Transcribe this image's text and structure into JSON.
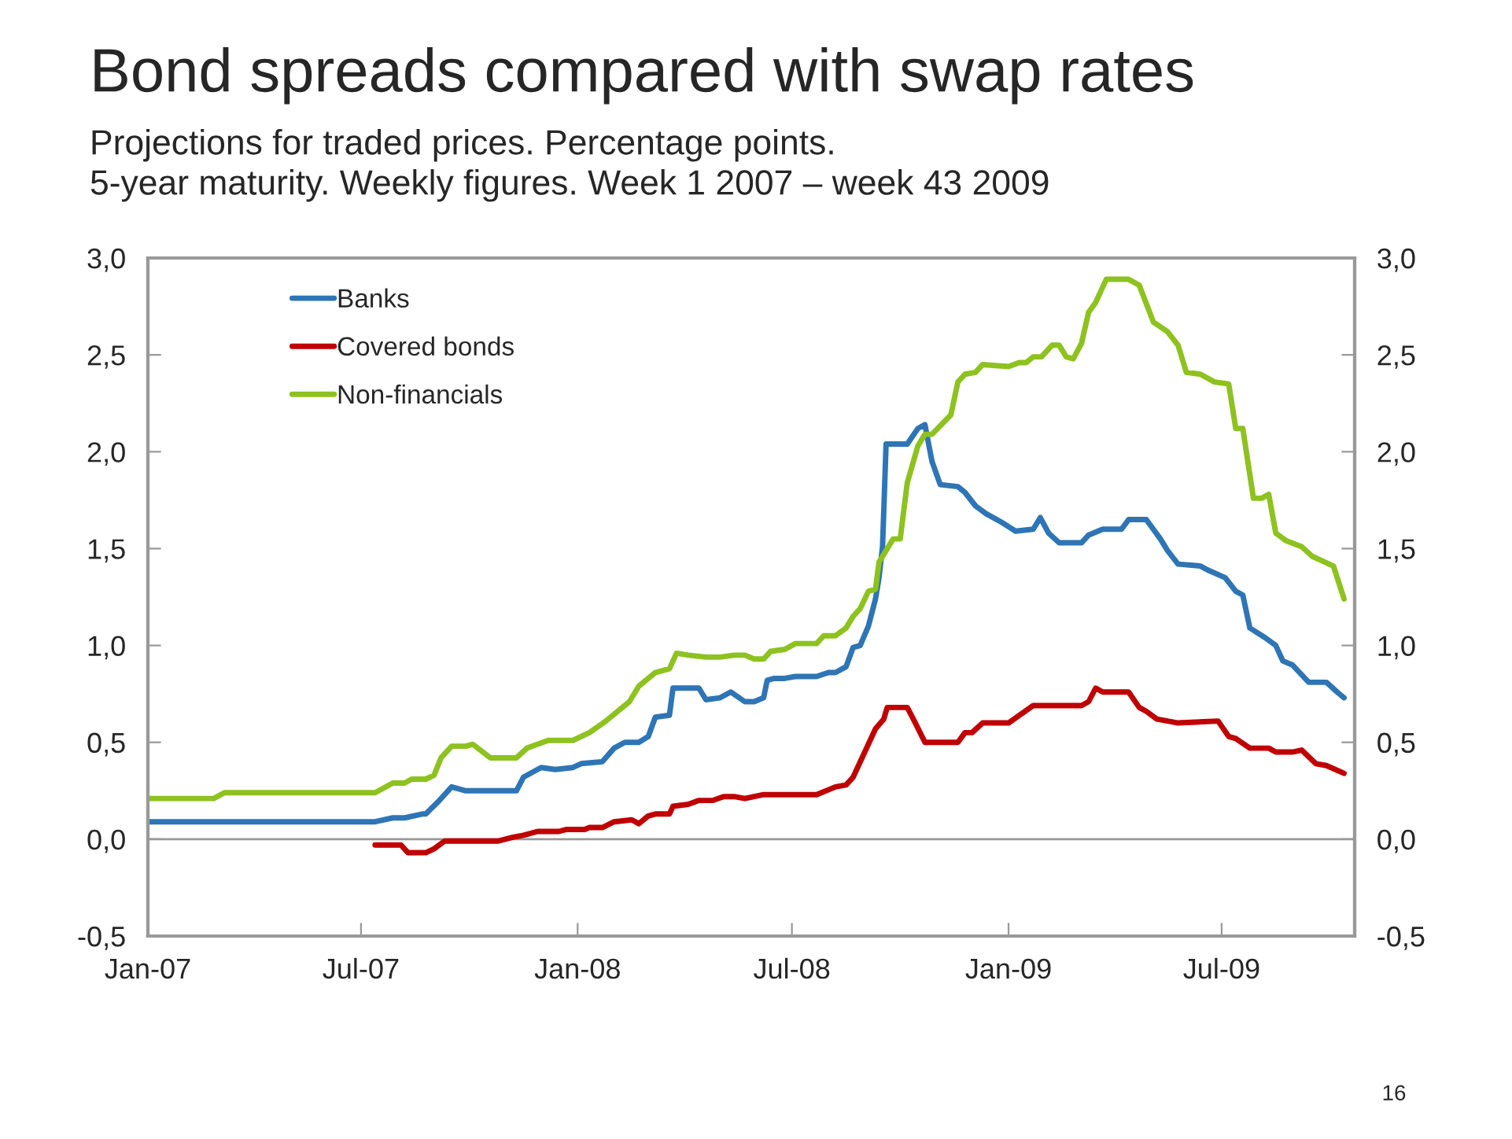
{
  "chart_data": {
    "type": "line",
    "title": "Bond spreads compared with swap rates",
    "subtitle": "Projections for traded prices. Percentage points.\n5-year maturity. Weekly figures. Week 1 2007 – week 43 2009",
    "xlim": [
      "2007-01-01",
      "2009-10-22"
    ],
    "xticks": [
      {
        "value": "2007-01-01",
        "label": "Jan-07"
      },
      {
        "value": "2007-07-01",
        "label": "Jul-07"
      },
      {
        "value": "2008-01-01",
        "label": "Jan-08"
      },
      {
        "value": "2008-07-01",
        "label": "Jul-08"
      },
      {
        "value": "2009-01-01",
        "label": "Jan-09"
      },
      {
        "value": "2009-07-01",
        "label": "Jul-09"
      }
    ],
    "ylim": [
      -0.5,
      3.0
    ],
    "yticks": [
      {
        "value": -0.5,
        "label": "-0,5"
      },
      {
        "value": 0,
        "label": "0,0"
      },
      {
        "value": 0.5,
        "label": "0,5"
      },
      {
        "value": 1.0,
        "label": "1,0"
      },
      {
        "value": 1.5,
        "label": "1,5"
      },
      {
        "value": 2.0,
        "label": "2,0"
      },
      {
        "value": 2.5,
        "label": "2,5"
      },
      {
        "value": 3.0,
        "label": "3,0"
      }
    ],
    "y2lim": [
      -0.5,
      3.0
    ],
    "y2ticks": [
      {
        "value": -0.5,
        "label": "-0,5"
      },
      {
        "value": 0,
        "label": "0,0"
      },
      {
        "value": 0.5,
        "label": "0,5"
      },
      {
        "value": 1.0,
        "label": "1,0"
      },
      {
        "value": 1.5,
        "label": "1,5"
      },
      {
        "value": 2.0,
        "label": "2,0"
      },
      {
        "value": 2.5,
        "label": "2,5"
      },
      {
        "value": 3.0,
        "label": "3,0"
      }
    ],
    "ref_lines": [
      {
        "axis": "y",
        "value": 0,
        "color": "#999999"
      }
    ],
    "grid": false,
    "legend": "top left",
    "marker": "none",
    "line_style": "solid",
    "annotations": [
      "16"
    ],
    "series": [
      {
        "name": "Banks",
        "color": "#2e75b6",
        "x": [
          "2007-01-01",
          "2007-07-13",
          "2007-07-28",
          "2007-08-07",
          "2007-08-22",
          "2007-08-25",
          "2007-09-04",
          "2007-09-16",
          "2007-09-28",
          "2007-11-10",
          "2007-11-16",
          "2007-12-01",
          "2007-12-13",
          "2007-12-28",
          "2008-01-04",
          "2008-01-22",
          "2008-02-01",
          "2008-02-10",
          "2008-02-22",
          "2008-03-01",
          "2008-03-07",
          "2008-03-19",
          "2008-03-22",
          "2008-04-13",
          "2008-04-19",
          "2008-05-01",
          "2008-05-10",
          "2008-05-22",
          "2008-05-30",
          "2008-06-07",
          "2008-06-10",
          "2008-06-16",
          "2008-06-25",
          "2008-07-04",
          "2008-07-22",
          "2008-08-01",
          "2008-08-07",
          "2008-08-16",
          "2008-08-22",
          "2008-08-28",
          "2008-09-04",
          "2008-09-10",
          "2008-09-13",
          "2008-09-16",
          "2008-09-19",
          "2008-10-07",
          "2008-10-16",
          "2008-10-22",
          "2008-10-28",
          "2008-11-04",
          "2008-11-19",
          "2008-11-25",
          "2008-12-04",
          "2008-12-13",
          "2008-12-25",
          "2009-01-07",
          "2009-01-22",
          "2009-01-28",
          "2009-02-04",
          "2009-02-13",
          "2009-03-04",
          "2009-03-10",
          "2009-03-22",
          "2009-04-07",
          "2009-04-13",
          "2009-04-28",
          "2009-05-10",
          "2009-05-16",
          "2009-05-25",
          "2009-06-13",
          "2009-06-19",
          "2009-07-04",
          "2009-07-13",
          "2009-07-19",
          "2009-07-25",
          "2009-08-07",
          "2009-08-16",
          "2009-08-22",
          "2009-08-30",
          "2009-09-13",
          "2009-09-28",
          "2009-10-07",
          "2009-10-13"
        ],
        "values": [
          0.09,
          0.09,
          0.11,
          0.11,
          0.13,
          0.13,
          0.19,
          0.27,
          0.25,
          0.25,
          0.32,
          0.37,
          0.36,
          0.37,
          0.39,
          0.4,
          0.47,
          0.5,
          0.5,
          0.53,
          0.63,
          0.64,
          0.78,
          0.78,
          0.72,
          0.73,
          0.76,
          0.71,
          0.71,
          0.73,
          0.82,
          0.83,
          0.83,
          0.84,
          0.84,
          0.86,
          0.86,
          0.89,
          0.99,
          1.0,
          1.1,
          1.24,
          1.35,
          1.51,
          2.04,
          2.04,
          2.12,
          2.14,
          1.95,
          1.83,
          1.82,
          1.79,
          1.72,
          1.68,
          1.64,
          1.59,
          1.6,
          1.66,
          1.58,
          1.53,
          1.53,
          1.57,
          1.6,
          1.6,
          1.65,
          1.65,
          1.55,
          1.49,
          1.42,
          1.41,
          1.39,
          1.35,
          1.28,
          1.26,
          1.09,
          1.04,
          1.0,
          0.92,
          0.9,
          0.81,
          0.81,
          0.76,
          0.73
        ]
      },
      {
        "name": "Covered bonds",
        "color": "#c00000",
        "x": [
          "2007-07-13",
          "2007-08-04",
          "2007-08-10",
          "2007-08-25",
          "2007-09-01",
          "2007-09-10",
          "2007-10-25",
          "2007-11-07",
          "2007-11-16",
          "2007-11-28",
          "2007-12-16",
          "2007-12-22",
          "2008-01-07",
          "2008-01-11",
          "2008-01-22",
          "2008-02-01",
          "2008-02-16",
          "2008-02-22",
          "2008-03-01",
          "2008-03-07",
          "2008-03-19",
          "2008-03-22",
          "2008-04-04",
          "2008-04-13",
          "2008-04-25",
          "2008-05-04",
          "2008-05-13",
          "2008-05-22",
          "2008-06-07",
          "2008-07-22",
          "2008-08-07",
          "2008-08-16",
          "2008-08-22",
          "2008-09-10",
          "2008-09-17",
          "2008-09-20",
          "2008-10-07",
          "2008-10-13",
          "2008-10-22",
          "2008-11-19",
          "2008-11-25",
          "2008-12-01",
          "2008-12-10",
          "2009-01-01",
          "2009-01-22",
          "2009-03-04",
          "2009-03-10",
          "2009-03-16",
          "2009-03-22",
          "2009-04-13",
          "2009-04-22",
          "2009-04-28",
          "2009-05-07",
          "2009-05-16",
          "2009-05-25",
          "2009-06-28",
          "2009-07-07",
          "2009-07-13",
          "2009-07-25",
          "2009-08-10",
          "2009-08-16",
          "2009-08-30",
          "2009-09-07",
          "2009-09-19",
          "2009-09-28",
          "2009-10-13"
        ],
        "values": [
          -0.03,
          -0.03,
          -0.07,
          -0.07,
          -0.05,
          -0.01,
          -0.01,
          0.01,
          0.02,
          0.04,
          0.04,
          0.05,
          0.05,
          0.06,
          0.06,
          0.09,
          0.1,
          0.08,
          0.12,
          0.13,
          0.13,
          0.17,
          0.18,
          0.2,
          0.2,
          0.22,
          0.22,
          0.21,
          0.23,
          0.23,
          0.27,
          0.28,
          0.32,
          0.57,
          0.62,
          0.68,
          0.68,
          0.61,
          0.5,
          0.5,
          0.55,
          0.55,
          0.6,
          0.6,
          0.69,
          0.69,
          0.71,
          0.78,
          0.76,
          0.76,
          0.68,
          0.66,
          0.62,
          0.61,
          0.6,
          0.61,
          0.53,
          0.52,
          0.47,
          0.47,
          0.45,
          0.45,
          0.46,
          0.39,
          0.38,
          0.34
        ]
      },
      {
        "name": "Non-financials",
        "color": "#8dc21f",
        "x": [
          "2007-01-01",
          "2007-02-26",
          "2007-03-07",
          "2007-07-13",
          "2007-07-28",
          "2007-08-07",
          "2007-08-13",
          "2007-08-25",
          "2007-09-01",
          "2007-09-07",
          "2007-09-16",
          "2007-09-28",
          "2007-10-04",
          "2007-10-19",
          "2007-11-10",
          "2007-11-19",
          "2007-12-07",
          "2007-12-28",
          "2008-01-11",
          "2008-01-25",
          "2008-02-14",
          "2008-02-22",
          "2008-03-07",
          "2008-03-19",
          "2008-03-25",
          "2008-04-04",
          "2008-04-19",
          "2008-05-01",
          "2008-05-13",
          "2008-05-22",
          "2008-05-30",
          "2008-06-07",
          "2008-06-13",
          "2008-06-25",
          "2008-07-04",
          "2008-07-22",
          "2008-07-28",
          "2008-08-07",
          "2008-08-16",
          "2008-08-22",
          "2008-08-28",
          "2008-09-04",
          "2008-09-10",
          "2008-09-13",
          "2008-09-19",
          "2008-09-25",
          "2008-10-01",
          "2008-10-07",
          "2008-10-16",
          "2008-10-22",
          "2008-10-28",
          "2008-11-13",
          "2008-11-19",
          "2008-11-25",
          "2008-12-04",
          "2008-12-10",
          "2009-01-01",
          "2009-01-10",
          "2009-01-16",
          "2009-01-22",
          "2009-01-29",
          "2009-02-07",
          "2009-02-13",
          "2009-02-19",
          "2009-02-25",
          "2009-03-04",
          "2009-03-10",
          "2009-03-16",
          "2009-03-25",
          "2009-04-13",
          "2009-04-22",
          "2009-05-04",
          "2009-05-16",
          "2009-05-25",
          "2009-06-01",
          "2009-06-13",
          "2009-06-25",
          "2009-07-07",
          "2009-07-13",
          "2009-07-19",
          "2009-07-28",
          "2009-08-04",
          "2009-08-10",
          "2009-08-16",
          "2009-08-25",
          "2009-09-07",
          "2009-09-16",
          "2009-10-04",
          "2009-10-13"
        ],
        "values": [
          0.21,
          0.21,
          0.24,
          0.24,
          0.29,
          0.29,
          0.31,
          0.31,
          0.33,
          0.42,
          0.48,
          0.48,
          0.49,
          0.42,
          0.42,
          0.47,
          0.51,
          0.51,
          0.55,
          0.61,
          0.71,
          0.79,
          0.86,
          0.88,
          0.96,
          0.95,
          0.94,
          0.94,
          0.95,
          0.95,
          0.93,
          0.93,
          0.97,
          0.98,
          1.01,
          1.01,
          1.05,
          1.05,
          1.09,
          1.15,
          1.19,
          1.28,
          1.29,
          1.43,
          1.49,
          1.55,
          1.55,
          1.84,
          2.03,
          2.09,
          2.09,
          2.19,
          2.36,
          2.4,
          2.41,
          2.45,
          2.44,
          2.46,
          2.46,
          2.49,
          2.49,
          2.55,
          2.55,
          2.49,
          2.48,
          2.56,
          2.72,
          2.77,
          2.89,
          2.89,
          2.86,
          2.67,
          2.62,
          2.55,
          2.41,
          2.4,
          2.36,
          2.35,
          2.12,
          2.12,
          1.76,
          1.76,
          1.78,
          1.58,
          1.54,
          1.51,
          1.46,
          1.41,
          1.24
        ]
      }
    ]
  }
}
